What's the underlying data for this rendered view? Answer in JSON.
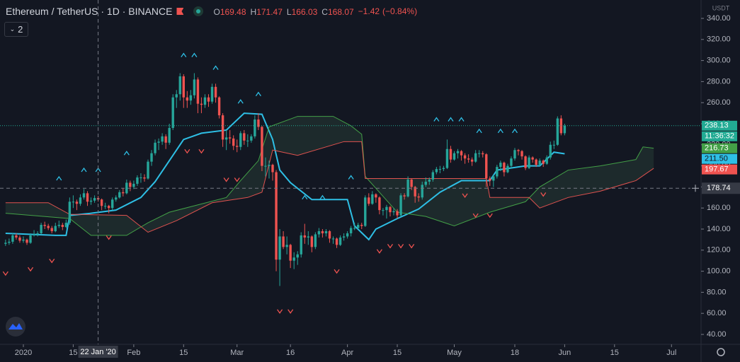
{
  "header": {
    "title": "Ethereum / TetherUS · 1D · BINANCE",
    "o": "O",
    "h": "H",
    "l": "L",
    "c": "C",
    "change": "−1.42",
    "change_pct": "(−0.84%)",
    "indicators": "2",
    "currency": "USDT"
  },
  "chart_data": {
    "type": "candlestick",
    "up_color": "#26a69a",
    "down_color": "#ef5350",
    "cloud_color": "rgba(90,140,100,0.16)",
    "xlim": [
      -1.56,
      195.3
    ],
    "ylim": [
      30.6,
      357.45
    ],
    "xticks": [
      {
        "value": 5,
        "label": "2020"
      },
      {
        "value": 19,
        "label": "15"
      },
      {
        "value": 36,
        "label": "Feb"
      },
      {
        "value": 50,
        "label": "15"
      },
      {
        "value": 65,
        "label": "Mar"
      },
      {
        "value": 80,
        "label": "16"
      },
      {
        "value": 96,
        "label": "Apr"
      },
      {
        "value": 110,
        "label": "15"
      },
      {
        "value": 126,
        "label": "May"
      },
      {
        "value": 143,
        "label": "18"
      },
      {
        "value": 157,
        "label": "Jun"
      },
      {
        "value": 171,
        "label": "15"
      },
      {
        "value": 187,
        "label": "Jul"
      }
    ],
    "yticks": [
      {
        "value": 40,
        "label": "40.00"
      },
      {
        "value": 60,
        "label": "60.00"
      },
      {
        "value": 80,
        "label": "80.00"
      },
      {
        "value": 100,
        "label": "100.00"
      },
      {
        "value": 120,
        "label": "120.00"
      },
      {
        "value": 140,
        "label": "140.00"
      },
      {
        "value": 160,
        "label": "160.00"
      },
      {
        "value": 180,
        "label": "180.00"
      },
      {
        "value": 200,
        "label": "200.00"
      },
      {
        "value": 220,
        "label": "220.00"
      },
      {
        "value": 240,
        "label": "240.00"
      },
      {
        "value": 260,
        "label": "260.00"
      },
      {
        "value": 280,
        "label": "280.00"
      },
      {
        "value": 300,
        "label": "300.00"
      },
      {
        "value": 320,
        "label": "320.00"
      },
      {
        "value": 340,
        "label": "340.00"
      }
    ],
    "candles": [
      [
        126,
        130,
        124,
        127
      ],
      [
        127,
        131,
        125,
        128
      ],
      [
        128,
        136,
        126,
        134
      ],
      [
        134,
        136,
        130,
        132
      ],
      [
        132,
        134,
        127,
        129
      ],
      [
        129,
        133,
        127,
        130
      ],
      [
        130,
        131,
        125,
        127
      ],
      [
        127,
        136,
        126,
        134
      ],
      [
        134,
        139,
        133,
        135
      ],
      [
        135,
        138,
        133,
        136
      ],
      [
        136,
        146,
        135,
        144
      ],
      [
        144,
        147,
        140,
        143
      ],
      [
        143,
        145,
        139,
        141
      ],
      [
        141,
        143,
        136,
        138
      ],
      [
        138,
        146,
        137,
        143
      ],
      [
        143,
        148,
        141,
        144
      ],
      [
        144,
        146,
        139,
        142
      ],
      [
        142,
        149,
        141,
        146
      ],
      [
        146,
        170,
        144,
        166
      ],
      [
        166,
        172,
        160,
        166
      ],
      [
        166,
        168,
        158,
        164
      ],
      [
        164,
        173,
        162,
        170
      ],
      [
        170,
        178,
        168,
        174
      ],
      [
        174,
        176,
        162,
        166
      ],
      [
        166,
        170,
        163,
        167
      ],
      [
        167,
        172,
        165,
        169.48
      ],
      [
        169.48,
        171.47,
        166.03,
        168.07
      ],
      [
        168.07,
        169,
        158,
        162
      ],
      [
        162,
        165,
        159,
        162
      ],
      [
        162,
        163,
        155,
        160
      ],
      [
        160,
        170,
        158,
        168
      ],
      [
        168,
        172,
        166,
        170
      ],
      [
        170,
        177,
        169,
        175
      ],
      [
        175,
        179,
        171,
        174
      ],
      [
        174,
        187,
        173,
        184
      ],
      [
        184,
        186,
        176,
        180
      ],
      [
        180,
        186,
        178,
        183
      ],
      [
        183,
        191,
        181,
        189
      ],
      [
        189,
        193,
        184,
        189
      ],
      [
        189,
        192,
        185,
        188
      ],
      [
        188,
        206,
        187,
        204
      ],
      [
        204,
        215,
        200,
        212
      ],
      [
        212,
        225,
        210,
        222
      ],
      [
        222,
        226,
        215,
        223
      ],
      [
        223,
        231,
        220,
        228
      ],
      [
        228,
        230,
        216,
        222
      ],
      [
        222,
        240,
        220,
        236
      ],
      [
        236,
        268,
        234,
        265
      ],
      [
        265,
        272,
        255,
        268
      ],
      [
        268,
        288,
        262,
        285
      ],
      [
        285,
        287,
        255,
        265
      ],
      [
        265,
        271,
        255,
        262
      ],
      [
        262,
        272,
        258,
        267
      ],
      [
        267,
        288,
        264,
        282
      ],
      [
        282,
        284,
        250,
        259
      ],
      [
        259,
        265,
        250,
        258
      ],
      [
        258,
        268,
        255,
        265
      ],
      [
        265,
        268,
        256,
        261
      ],
      [
        261,
        278,
        259,
        275
      ],
      [
        275,
        278,
        260,
        265
      ],
      [
        265,
        266,
        245,
        248
      ],
      [
        248,
        250,
        218,
        225
      ],
      [
        225,
        234,
        215,
        227
      ],
      [
        227,
        234,
        221,
        226
      ],
      [
        226,
        229,
        215,
        219
      ],
      [
        219,
        225,
        213,
        218
      ],
      [
        218,
        233,
        215,
        231
      ],
      [
        231,
        234,
        220,
        224
      ],
      [
        224,
        230,
        218,
        224
      ],
      [
        224,
        230,
        222,
        228
      ],
      [
        228,
        248,
        226,
        244
      ],
      [
        244,
        250,
        234,
        237
      ],
      [
        237,
        238,
        195,
        200
      ],
      [
        200,
        208,
        190,
        200
      ],
      [
        200,
        205,
        188,
        201
      ],
      [
        201,
        202,
        186,
        194
      ],
      [
        194,
        196,
        100,
        111
      ],
      [
        111,
        140,
        86,
        133
      ],
      [
        133,
        138,
        121,
        123
      ],
      [
        123,
        133,
        116,
        125
      ],
      [
        125,
        126,
        103,
        110
      ],
      [
        110,
        118,
        102,
        113
      ],
      [
        113,
        119,
        106,
        116
      ],
      [
        116,
        137,
        113,
        134
      ],
      [
        134,
        145,
        126,
        132
      ],
      [
        132,
        138,
        125,
        133
      ],
      [
        133,
        134,
        118,
        123
      ],
      [
        123,
        137,
        121,
        135
      ],
      [
        135,
        141,
        132,
        138
      ],
      [
        138,
        140,
        132,
        136
      ],
      [
        136,
        140,
        133,
        138
      ],
      [
        138,
        139,
        127,
        131
      ],
      [
        131,
        133,
        126,
        131
      ],
      [
        131,
        132,
        122,
        125
      ],
      [
        125,
        134,
        124,
        132
      ],
      [
        132,
        136,
        129,
        133
      ],
      [
        133,
        138,
        131,
        136
      ],
      [
        136,
        143,
        133,
        141
      ],
      [
        141,
        146,
        139,
        141
      ],
      [
        141,
        146,
        140,
        144
      ],
      [
        144,
        146,
        140,
        143
      ],
      [
        143,
        172,
        142,
        170
      ],
      [
        170,
        174,
        162,
        164
      ],
      [
        164,
        176,
        163,
        173
      ],
      [
        173,
        174,
        165,
        170
      ],
      [
        170,
        171,
        154,
        158
      ],
      [
        158,
        160,
        153,
        158
      ],
      [
        158,
        163,
        150,
        161
      ],
      [
        161,
        162,
        152,
        156
      ],
      [
        156,
        160,
        153,
        157
      ],
      [
        157,
        159,
        150,
        153
      ],
      [
        153,
        174,
        152,
        172
      ],
      [
        172,
        174,
        168,
        171
      ],
      [
        171,
        190,
        170,
        187
      ],
      [
        187,
        188,
        177,
        180
      ],
      [
        180,
        181,
        165,
        171
      ],
      [
        171,
        174,
        166,
        170
      ],
      [
        170,
        185,
        168,
        182
      ],
      [
        182,
        189,
        180,
        185
      ],
      [
        185,
        189,
        182,
        187
      ],
      [
        187,
        196,
        185,
        194
      ],
      [
        194,
        199,
        192,
        197
      ],
      [
        197,
        200,
        193,
        197
      ],
      [
        197,
        200,
        195,
        198
      ],
      [
        198,
        225,
        197,
        216
      ],
      [
        216,
        219,
        203,
        206
      ],
      [
        206,
        214,
        205,
        212
      ],
      [
        212,
        216,
        207,
        214
      ],
      [
        214,
        215,
        205,
        210
      ],
      [
        210,
        212,
        202,
        207
      ],
      [
        207,
        211,
        203,
        206
      ],
      [
        206,
        208,
        200,
        204
      ],
      [
        204,
        215,
        203,
        212
      ],
      [
        212,
        215,
        208,
        212
      ],
      [
        212,
        214,
        208,
        211
      ],
      [
        211,
        212,
        180,
        188
      ],
      [
        188,
        190,
        181,
        186
      ],
      [
        186,
        192,
        180,
        190
      ],
      [
        190,
        201,
        188,
        199
      ],
      [
        199,
        205,
        195,
        203
      ],
      [
        203,
        204,
        190,
        194
      ],
      [
        194,
        202,
        193,
        200
      ],
      [
        200,
        209,
        198,
        207
      ],
      [
        207,
        217,
        205,
        215
      ],
      [
        215,
        216,
        210,
        214
      ],
      [
        214,
        215,
        206,
        209
      ],
      [
        209,
        210,
        196,
        198
      ],
      [
        198,
        210,
        197,
        208
      ],
      [
        208,
        209,
        203,
        206
      ],
      [
        206,
        207,
        199,
        201
      ],
      [
        201,
        207,
        200,
        205
      ],
      [
        205,
        206,
        199,
        202
      ],
      [
        202,
        210,
        201,
        208
      ],
      [
        208,
        223,
        206,
        220
      ],
      [
        220,
        224,
        216,
        220
      ],
      [
        220,
        247,
        219,
        245
      ],
      [
        245,
        248,
        229,
        231
      ],
      [
        231,
        240,
        229,
        238.13
      ]
    ],
    "lines": [
      {
        "color": "#2ebfe5",
        "x": [
          0,
          14,
          17,
          18,
          24,
          31,
          38,
          42,
          46,
          50,
          55,
          62,
          67,
          72,
          75,
          77,
          80,
          86,
          96,
          98,
          102,
          104,
          110,
          116,
          122,
          128,
          136,
          138,
          146,
          150,
          154,
          157
        ],
        "values": [
          136,
          134,
          134,
          153,
          155,
          158,
          170,
          185,
          205,
          225,
          231,
          234,
          250,
          249,
          225,
          196,
          184,
          168,
          168,
          143,
          130,
          140,
          150,
          159,
          175,
          186,
          186,
          196,
          200,
          200,
          213,
          211.5
        ]
      },
      {
        "color": "#43a047",
        "x": [
          0,
          18,
          24,
          34,
          40,
          46,
          54,
          62,
          66,
          71,
          74,
          82,
          92,
          97,
          100,
          101,
          110,
          118,
          126,
          136,
          146,
          150,
          158,
          167,
          177,
          179,
          182
        ],
        "values": [
          155,
          150,
          134,
          134,
          146,
          156,
          163,
          170,
          186,
          205,
          237,
          247,
          247,
          238,
          230,
          190,
          156,
          152,
          143,
          156,
          166,
          180,
          196,
          200,
          206,
          218,
          216.73
        ]
      },
      {
        "color": "#e0524f",
        "x": [
          0,
          12,
          18,
          34,
          40,
          48,
          58,
          68,
          72,
          75,
          82,
          95,
          100,
          101,
          135,
          136,
          147,
          150,
          158,
          167,
          177,
          182
        ],
        "values": [
          165,
          165,
          154,
          153,
          137,
          148,
          165,
          170,
          175,
          215,
          210,
          223,
          223,
          188,
          188,
          170,
          170,
          160,
          170,
          176,
          186,
          197.67
        ]
      }
    ],
    "markers_up": {
      "color": "#2ebfe5",
      "points": [
        [
          15,
          188
        ],
        [
          22,
          196
        ],
        [
          26,
          196
        ],
        [
          34,
          212
        ],
        [
          50,
          305
        ],
        [
          53,
          305
        ],
        [
          59,
          293
        ],
        [
          66,
          261
        ],
        [
          71,
          268
        ],
        [
          84,
          170
        ],
        [
          89,
          170
        ],
        [
          97,
          189
        ],
        [
          121,
          244
        ],
        [
          125,
          244
        ],
        [
          128,
          244
        ],
        [
          133,
          233
        ],
        [
          139,
          233
        ],
        [
          143,
          233
        ]
      ]
    },
    "markers_down": {
      "color": "#ef5350",
      "points": [
        [
          0,
          98
        ],
        [
          7,
          102
        ],
        [
          13,
          110
        ],
        [
          29,
          132
        ],
        [
          51,
          214
        ],
        [
          55,
          214
        ],
        [
          62,
          187
        ],
        [
          65,
          187
        ],
        [
          77,
          62
        ],
        [
          80,
          62
        ],
        [
          93,
          100
        ],
        [
          105,
          119
        ],
        [
          108,
          124
        ],
        [
          111,
          124
        ],
        [
          114,
          124
        ],
        [
          129,
          172
        ],
        [
          132,
          153
        ],
        [
          136,
          153
        ],
        [
          151,
          173
        ]
      ]
    },
    "crosshair": {
      "x": {
        "value": 26,
        "label": "22 Jan '20"
      },
      "y": {
        "value": 178.74,
        "label": "178.74"
      }
    },
    "badges": [
      {
        "value": 238.13,
        "label": "238.13",
        "color": "#22ab94"
      },
      {
        "value": 216.73,
        "label": "216.73",
        "color": "#43a047"
      },
      {
        "value": 211.5,
        "label": "211.50",
        "color": "#2ebfe5"
      },
      {
        "value": 197.67,
        "label": "197.67",
        "color": "#ef5350"
      }
    ],
    "countdown": "11:36:32"
  }
}
